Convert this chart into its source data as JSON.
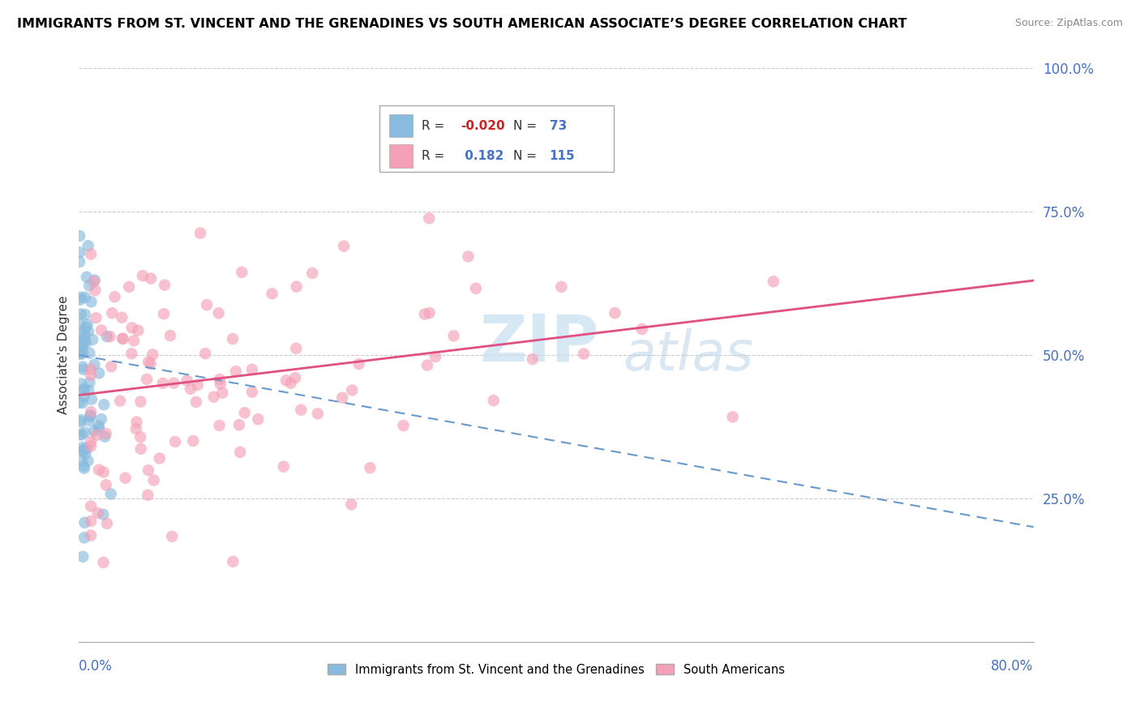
{
  "title": "IMMIGRANTS FROM ST. VINCENT AND THE GRENADINES VS SOUTH AMERICAN ASSOCIATE’S DEGREE CORRELATION CHART",
  "source": "Source: ZipAtlas.com",
  "ylabel": "Associate's Degree",
  "xmin": 0.0,
  "xmax": 0.8,
  "ymin": 0.0,
  "ymax": 1.0,
  "yticks": [
    0.0,
    0.25,
    0.5,
    0.75,
    1.0
  ],
  "ytick_labels": [
    "",
    "25.0%",
    "50.0%",
    "75.0%",
    "100.0%"
  ],
  "blue_color": "#88bbdd",
  "pink_color": "#f4a0b8",
  "blue_line_color": "#6699cc",
  "pink_line_color": "#e05080",
  "legend_label1": "Immigrants from St. Vincent and the Grenadines",
  "legend_label2": "South Americans",
  "legend1_R": "-0.020",
  "legend1_N": "73",
  "legend2_R": "0.182",
  "legend2_N": "115",
  "blue_trend_x0": 0.0,
  "blue_trend_y0": 0.5,
  "blue_trend_x1": 0.8,
  "blue_trend_y1": 0.2,
  "pink_trend_x0": 0.0,
  "pink_trend_y0": 0.43,
  "pink_trend_x1": 0.8,
  "pink_trend_y1": 0.63
}
